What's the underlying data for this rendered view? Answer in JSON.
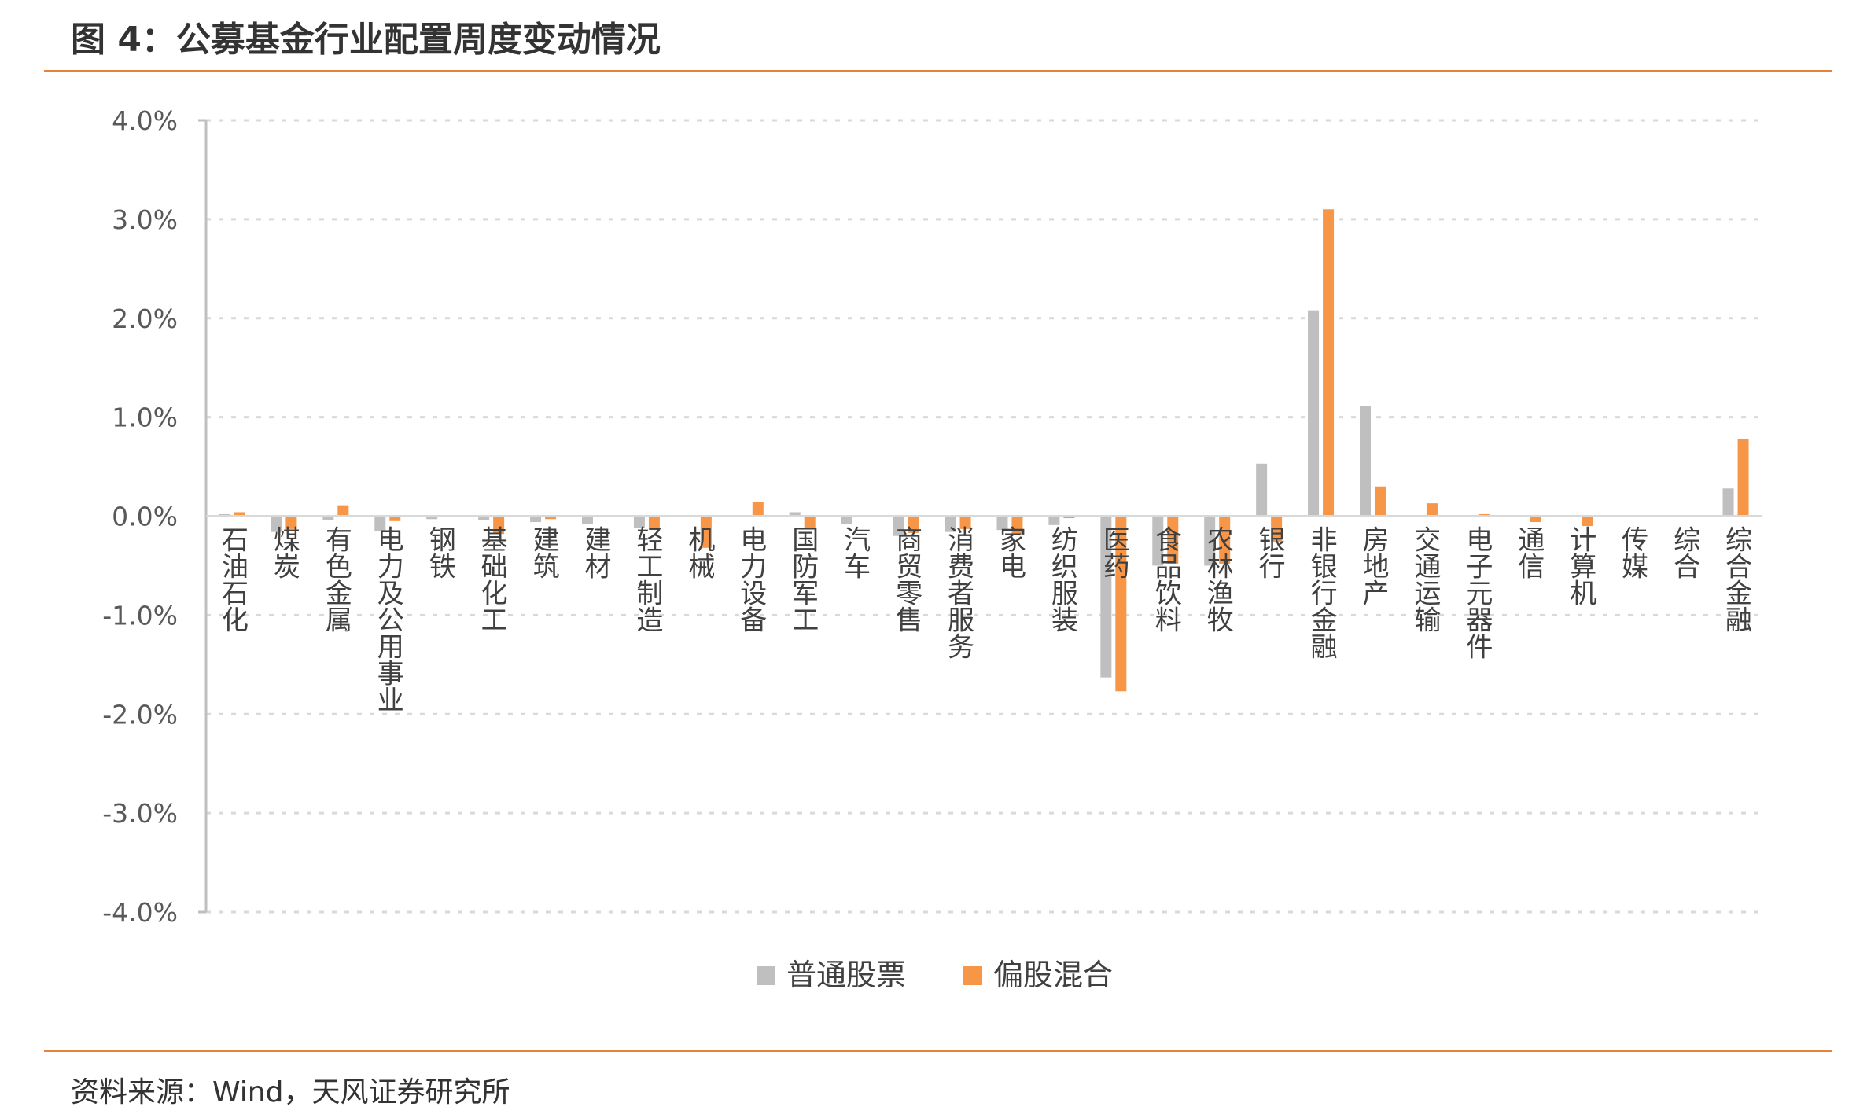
{
  "title": "图 4：公募基金行业配置周度变动情况",
  "source": "资料来源：Wind，天风证券研究所",
  "colors": {
    "series_1": "#BFBFBF",
    "series_2": "#F79646",
    "rule": "#E8823A",
    "grid": "#D9D9D9",
    "axis": "#BFBFBF"
  },
  "chart_data": {
    "type": "bar",
    "categories": [
      "石油石化",
      "煤炭",
      "有色金属",
      "电力及公用事业",
      "钢铁",
      "基础化工",
      "建筑",
      "建材",
      "轻工制造",
      "机械",
      "电力设备",
      "国防军工",
      "汽车",
      "商贸零售",
      "消费者服务",
      "家电",
      "纺织服装",
      "医药",
      "食品饮料",
      "农林渔牧",
      "银行",
      "非银行金融",
      "房地产",
      "交通运输",
      "电子元器件",
      "通信",
      "计算机",
      "传媒",
      "综合",
      "综合金融"
    ],
    "series": [
      {
        "name": "普通股票",
        "values": [
          0.02,
          -0.16,
          -0.04,
          -0.15,
          -0.03,
          -0.04,
          -0.06,
          -0.08,
          -0.12,
          0.0,
          0.01,
          0.04,
          -0.08,
          -0.2,
          -0.16,
          -0.14,
          -0.09,
          -1.63,
          -0.5,
          -0.5,
          0.53,
          2.08,
          1.11,
          0.0,
          -0.01,
          0.0,
          0.0,
          0.0,
          0.0,
          0.28
        ]
      },
      {
        "name": "偏股混合",
        "values": [
          0.04,
          -0.13,
          0.11,
          -0.05,
          0.0,
          -0.18,
          -0.03,
          0.01,
          -0.14,
          -0.32,
          0.14,
          -0.12,
          0.0,
          -0.17,
          -0.13,
          -0.19,
          -0.02,
          -1.77,
          -0.48,
          -0.48,
          -0.26,
          3.1,
          0.3,
          0.13,
          0.02,
          -0.06,
          -0.1,
          0.0,
          0.0,
          0.78
        ]
      }
    ],
    "yticks": [
      "4.0%",
      "3.0%",
      "2.0%",
      "1.0%",
      "0.0%",
      "-1.0%",
      "-2.0%",
      "-3.0%",
      "-4.0%"
    ],
    "ylim": [
      -4,
      4
    ],
    "unit": "%",
    "grid": true,
    "legend_position": "bottom-center"
  }
}
